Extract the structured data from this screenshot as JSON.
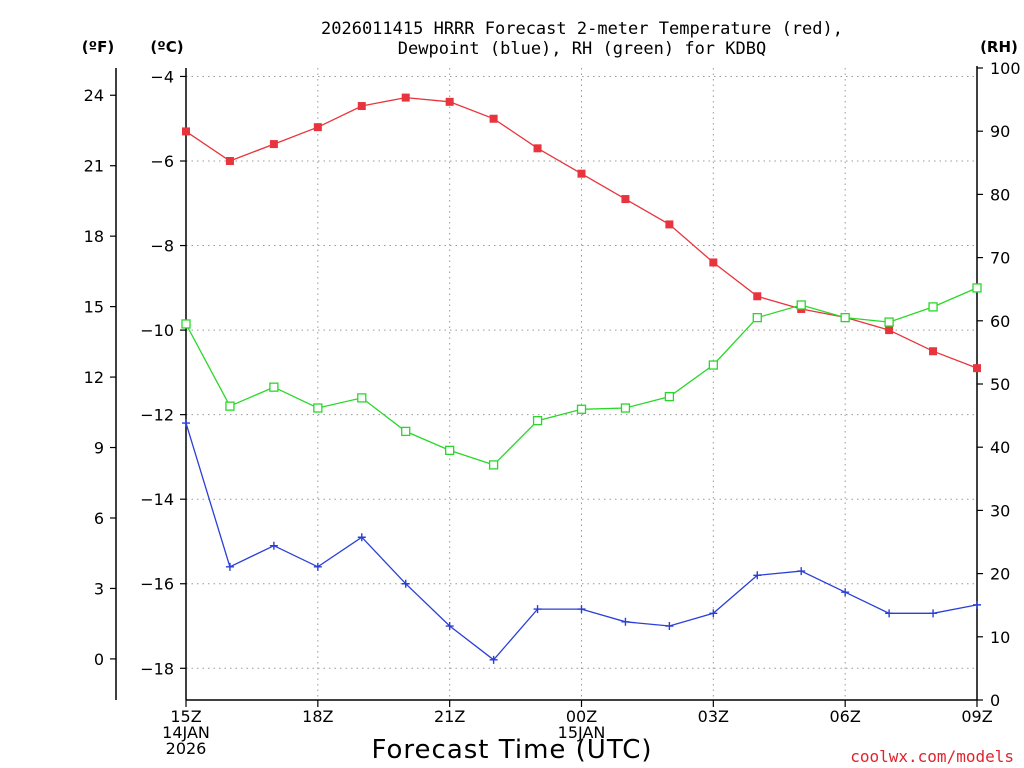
{
  "chart_data": {
    "type": "line",
    "title_line1": "2026011415 HRRR Forecast 2-meter Temperature (red),",
    "title_line2": "Dewpoint (blue), RH (green) for KDBQ",
    "xlabel": "Forecast Time (UTC)",
    "credit": "coolwx.com/models",
    "units": {
      "fahrenheit": "(ºF)",
      "celsius": "(ºC)",
      "rh": "(RH)"
    },
    "x_hours": [
      0,
      1,
      2,
      3,
      4,
      5,
      6,
      7,
      8,
      9,
      10,
      11,
      12,
      13,
      14,
      15,
      16,
      17,
      18
    ],
    "x_ticks": [
      {
        "hour": 0,
        "lines": [
          "15Z",
          "14JAN",
          "2026"
        ]
      },
      {
        "hour": 3,
        "lines": [
          "18Z"
        ]
      },
      {
        "hour": 6,
        "lines": [
          "21Z"
        ]
      },
      {
        "hour": 9,
        "lines": [
          "00Z",
          "15JAN"
        ]
      },
      {
        "hour": 12,
        "lines": [
          "03Z"
        ]
      },
      {
        "hour": 15,
        "lines": [
          "06Z"
        ]
      },
      {
        "hour": 18,
        "lines": [
          "09Z"
        ]
      }
    ],
    "celsius_axis": {
      "min": -18.75,
      "max": -3.8,
      "ticks": [
        -4,
        -6,
        -8,
        -10,
        -12,
        -14,
        -16,
        -18
      ]
    },
    "fahrenheit_ticks": [
      24,
      21,
      18,
      15,
      12,
      9,
      6,
      3,
      0
    ],
    "rh_axis": {
      "min": 0,
      "max": 100,
      "ticks": [
        0,
        10,
        20,
        30,
        40,
        50,
        60,
        70,
        80,
        90,
        100
      ]
    },
    "series": [
      {
        "name": "Temperature",
        "axis": "celsius",
        "color": "#e8343c",
        "marker": "filled-square",
        "values": [
          -5.3,
          -6.0,
          -5.6,
          -5.2,
          -4.7,
          -4.5,
          -4.6,
          -5.0,
          -5.7,
          -6.3,
          -6.9,
          -7.5,
          -8.4,
          -9.2,
          -9.5,
          -9.7,
          -10.0,
          -10.5,
          -10.9
        ]
      },
      {
        "name": "Dewpoint",
        "axis": "celsius",
        "color": "#2a3fd8",
        "marker": "plus",
        "values": [
          -12.2,
          -15.6,
          -15.1,
          -15.6,
          -14.9,
          -16.0,
          -17.0,
          -17.8,
          -16.6,
          -16.6,
          -16.9,
          -17.0,
          -16.7,
          -15.8,
          -15.7,
          -16.2,
          -16.7,
          -16.7,
          -16.5
        ]
      },
      {
        "name": "RH",
        "axis": "rh",
        "color": "#28d828",
        "marker": "open-square",
        "values": [
          59.5,
          46.5,
          49.5,
          46.2,
          47.8,
          42.5,
          39.5,
          37.2,
          44.2,
          46.0,
          46.2,
          48.0,
          53.0,
          60.5,
          62.5,
          60.5,
          59.8,
          62.2,
          65.2
        ]
      }
    ]
  }
}
